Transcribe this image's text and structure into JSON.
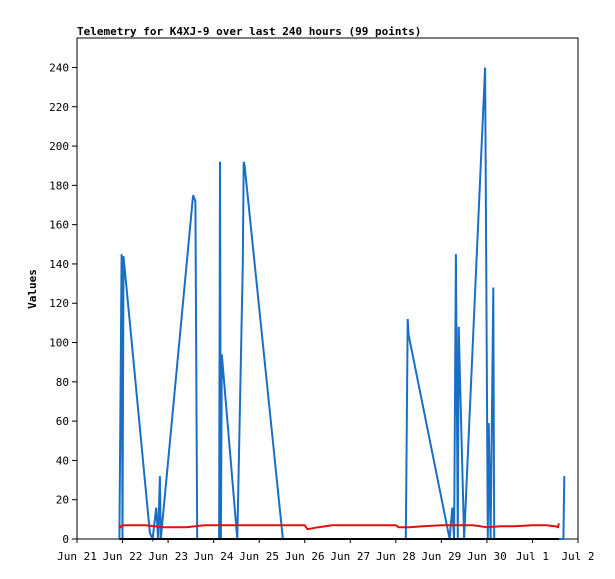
{
  "chart_data": {
    "type": "line",
    "title": "Telemetry for K4XJ-9 over last 240 hours (99 points)",
    "ylabel": "Values",
    "xlabel": "",
    "ylim": [
      0,
      255
    ],
    "xlim": [
      0,
      11
    ],
    "y_ticks": [
      0,
      20,
      40,
      60,
      80,
      100,
      120,
      140,
      160,
      180,
      200,
      220,
      240
    ],
    "x_ticks": [
      {
        "pos": 0,
        "label": "Jun 21"
      },
      {
        "pos": 1,
        "label": "Jun 22"
      },
      {
        "pos": 2,
        "label": "Jun 23"
      },
      {
        "pos": 3,
        "label": "Jun 24"
      },
      {
        "pos": 4,
        "label": "Jun 25"
      },
      {
        "pos": 5,
        "label": "Jun 26"
      },
      {
        "pos": 6,
        "label": "Jun 27"
      },
      {
        "pos": 7,
        "label": "Jun 28"
      },
      {
        "pos": 8,
        "label": "Jun 29"
      },
      {
        "pos": 9,
        "label": "Jun 30"
      },
      {
        "pos": 10,
        "label": "Jul 1"
      },
      {
        "pos": 11,
        "label": "Jul 2"
      }
    ],
    "grid": false,
    "series": [
      {
        "color": "#1a6fc4",
        "x": [
          0.93,
          0.98,
          1.0,
          1.02,
          1.6,
          1.66,
          1.74,
          1.78,
          1.82,
          1.84,
          2.55,
          2.6,
          2.64,
          3.12,
          3.14,
          3.16,
          3.18,
          3.52,
          3.64,
          3.66,
          3.68,
          4.52,
          7.22,
          7.26,
          7.28,
          8.18,
          8.24,
          8.28,
          8.32,
          8.36,
          8.38,
          8.5,
          8.96,
          9.02,
          9.04,
          9.08,
          9.14,
          9.16,
          9.22,
          10.68,
          10.7
        ],
        "values": [
          0,
          145,
          0,
          144,
          3,
          0,
          16,
          0,
          32,
          0,
          175,
          172,
          0,
          0,
          192,
          0,
          94,
          0,
          140,
          192,
          190,
          0,
          0,
          112,
          104,
          0,
          16,
          0,
          145,
          0,
          108,
          0,
          240,
          0,
          59,
          0,
          128,
          0,
          0,
          0,
          32
        ]
      },
      {
        "color": "#e01010",
        "x": [
          0.93,
          0.95,
          1.0,
          1.5,
          1.9,
          2.4,
          2.8,
          3.0,
          3.2,
          4.0,
          4.5,
          5.0,
          5.06,
          5.3,
          5.6,
          6.0,
          6.5,
          7.0,
          7.06,
          7.3,
          7.6,
          8.0,
          8.3,
          8.7,
          9.0,
          9.3,
          9.6,
          10.0,
          10.3,
          10.5,
          10.56,
          10.58
        ],
        "values": [
          7,
          6,
          7,
          7,
          6,
          6,
          7,
          7,
          7,
          7,
          7,
          7,
          5,
          6,
          7,
          7,
          7,
          7,
          6,
          6,
          6.5,
          7,
          7,
          7,
          6,
          6.5,
          6.5,
          7,
          7,
          6.5,
          6,
          8
        ]
      },
      {
        "color": "#000000",
        "x": [
          0.93,
          10.58
        ],
        "values": [
          0,
          0
        ]
      }
    ]
  }
}
